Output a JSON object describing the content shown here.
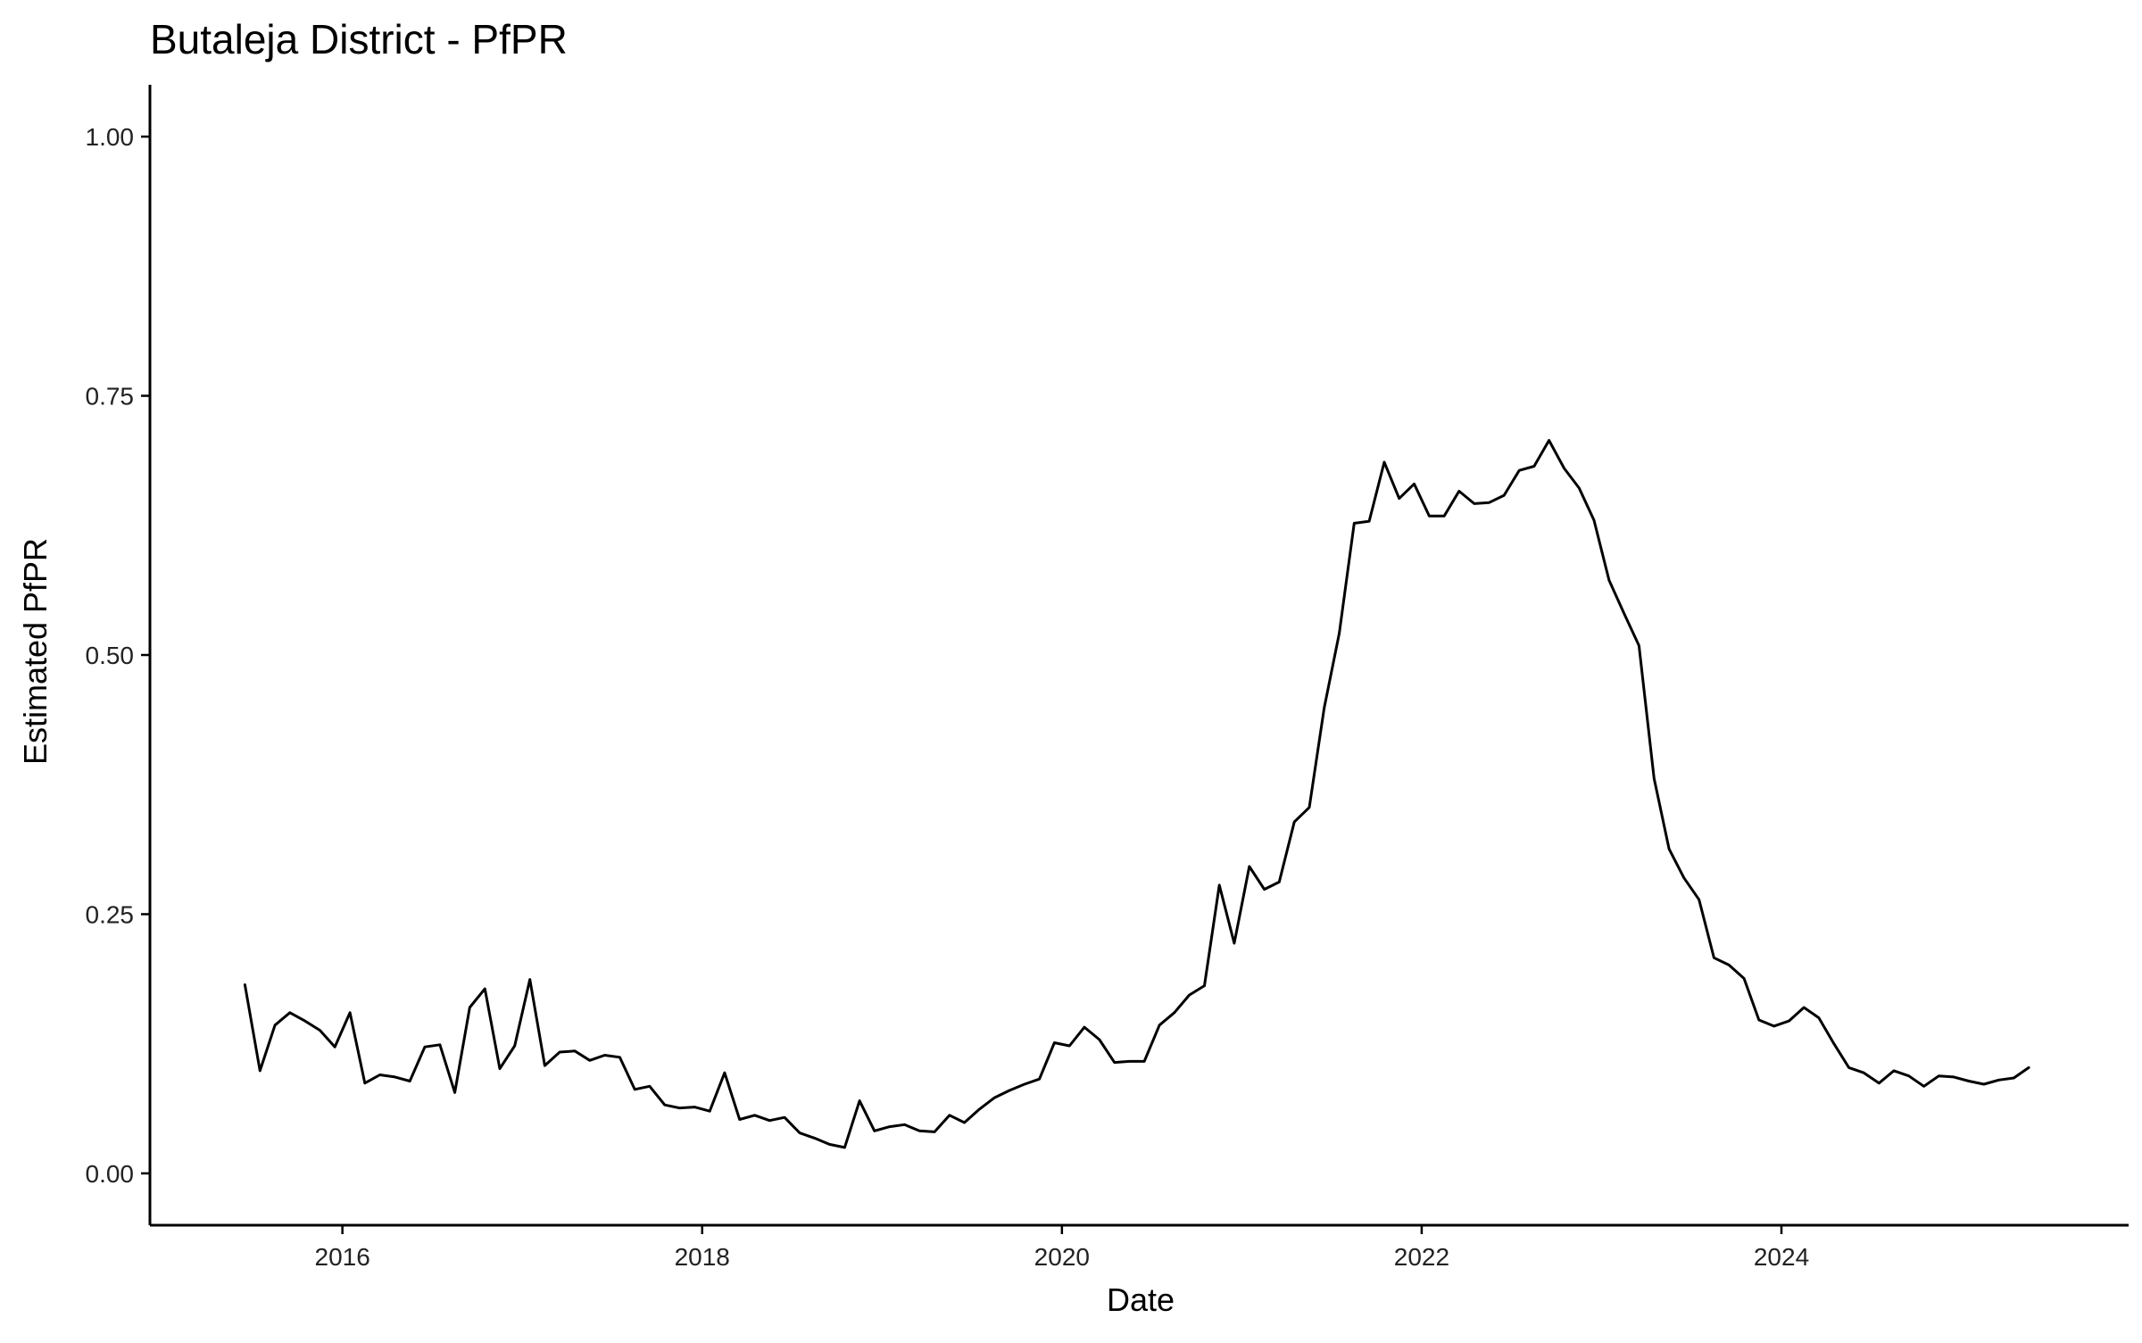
{
  "title": "Butaleja District - PfPR",
  "colors": {
    "line": "#000000",
    "axis": "#000000",
    "background": "#ffffff"
  },
  "chart_data": {
    "type": "line",
    "title": "Butaleja District - PfPR",
    "xlabel": "Date",
    "ylabel": "Estimated PfPR",
    "x_ticks": [
      2016,
      2018,
      2020,
      2022,
      2024
    ],
    "x_tick_labels": [
      "2016",
      "2018",
      "2020",
      "2022",
      "2024"
    ],
    "y_ticks": [
      0,
      0.25,
      0.5,
      0.75,
      1.0
    ],
    "y_tick_labels": [
      "0.00",
      "0.25",
      "0.50",
      "0.75",
      "1.00"
    ],
    "xlim": [
      2014.93,
      2025.93
    ],
    "ylim": [
      -0.05,
      1.05
    ],
    "grid": false,
    "legend": "none",
    "series": [
      {
        "x": [
          2015.458,
          2015.542,
          2015.625,
          2015.708,
          2015.792,
          2015.875,
          2015.958,
          2016.042,
          2016.125,
          2016.208,
          2016.292,
          2016.375,
          2016.458,
          2016.542,
          2016.625,
          2016.708,
          2016.792,
          2016.875,
          2016.958,
          2017.042,
          2017.125,
          2017.208,
          2017.292,
          2017.375,
          2017.458,
          2017.542,
          2017.625,
          2017.708,
          2017.792,
          2017.875,
          2017.958,
          2018.042,
          2018.125,
          2018.208,
          2018.292,
          2018.375,
          2018.458,
          2018.542,
          2018.625,
          2018.708,
          2018.792,
          2018.875,
          2018.958,
          2019.042,
          2019.125,
          2019.208,
          2019.292,
          2019.375,
          2019.458,
          2019.542,
          2019.625,
          2019.708,
          2019.792,
          2019.875,
          2019.958,
          2020.042,
          2020.125,
          2020.208,
          2020.292,
          2020.375,
          2020.458,
          2020.542,
          2020.625,
          2020.708,
          2020.792,
          2020.875,
          2020.958,
          2021.042,
          2021.125,
          2021.208,
          2021.292,
          2021.375,
          2021.458,
          2021.542,
          2021.625,
          2021.708,
          2021.792,
          2021.875,
          2021.958,
          2022.042,
          2022.125,
          2022.208,
          2022.292,
          2022.375,
          2022.458,
          2022.542,
          2022.625,
          2022.708,
          2022.792,
          2022.875,
          2022.958,
          2023.042,
          2023.125,
          2023.208,
          2023.292,
          2023.375,
          2023.458,
          2023.542,
          2023.625,
          2023.708,
          2023.792,
          2023.875,
          2023.958,
          2024.042,
          2024.125,
          2024.208,
          2024.292,
          2024.375,
          2024.458,
          2024.542,
          2024.625,
          2024.708,
          2024.792,
          2024.875,
          2024.958,
          2025.042,
          2025.125,
          2025.208,
          2025.292,
          2025.375
        ],
        "y": [
          0.182,
          0.099,
          0.143,
          0.155,
          0.147,
          0.138,
          0.122,
          0.155,
          0.087,
          0.095,
          0.093,
          0.089,
          0.122,
          0.124,
          0.078,
          0.16,
          0.178,
          0.101,
          0.123,
          0.187,
          0.104,
          0.117,
          0.118,
          0.109,
          0.114,
          0.112,
          0.081,
          0.084,
          0.066,
          0.063,
          0.064,
          0.06,
          0.097,
          0.052,
          0.056,
          0.051,
          0.054,
          0.039,
          0.034,
          0.028,
          0.025,
          0.07,
          0.041,
          0.045,
          0.047,
          0.041,
          0.04,
          0.056,
          0.049,
          0.062,
          0.073,
          0.08,
          0.086,
          0.091,
          0.126,
          0.123,
          0.141,
          0.129,
          0.107,
          0.108,
          0.108,
          0.143,
          0.155,
          0.172,
          0.181,
          0.278,
          0.222,
          0.296,
          0.274,
          0.281,
          0.339,
          0.353,
          0.449,
          0.521,
          0.627,
          0.629,
          0.686,
          0.651,
          0.665,
          0.634,
          0.634,
          0.658,
          0.646,
          0.647,
          0.654,
          0.678,
          0.682,
          0.707,
          0.68,
          0.661,
          0.63,
          0.572,
          0.54,
          0.509,
          0.381,
          0.313,
          0.285,
          0.264,
          0.208,
          0.201,
          0.188,
          0.148,
          0.142,
          0.147,
          0.16,
          0.15,
          0.125,
          0.102,
          0.097,
          0.087,
          0.099,
          0.094,
          0.084,
          0.094,
          0.093,
          0.089,
          0.086,
          0.09,
          0.092,
          0.102
        ]
      }
    ]
  }
}
